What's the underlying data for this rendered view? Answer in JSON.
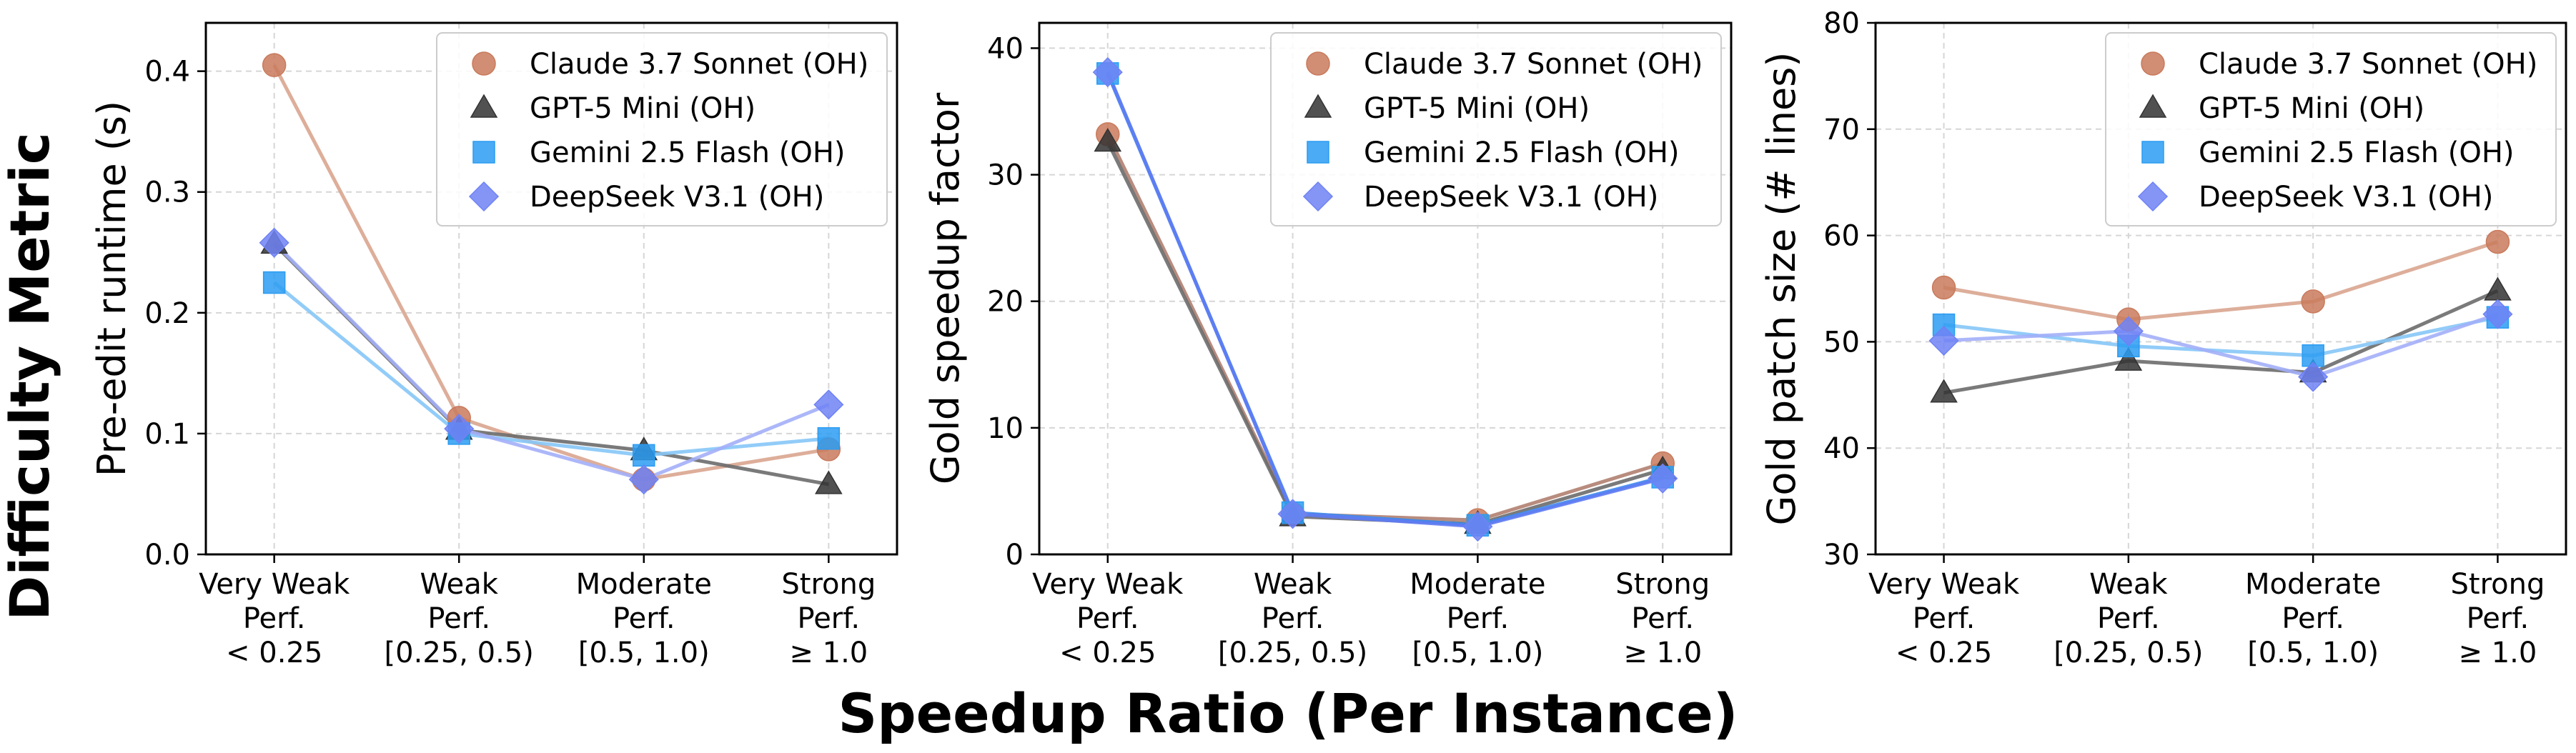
{
  "figure": {
    "supxlabel": "Speedup Ratio (Per Instance)",
    "supylabel": "Difficulty Metric"
  },
  "colors": {
    "claude": "#C97A5C",
    "gpt": "#333333",
    "gemini": "#2B9CF2",
    "deepseek": "#6F82F5"
  },
  "chart_data": [
    {
      "type": "line",
      "xlabel": "",
      "ylabel": "Pre-edit runtime (s)",
      "categories": [
        [
          "Very Weak",
          "Perf.",
          "< 0.25"
        ],
        [
          "Weak",
          "Perf.",
          "[0.25, 0.5)"
        ],
        [
          "Moderate",
          "Perf.",
          "[0.5, 1.0)"
        ],
        [
          "Strong",
          "Perf.",
          "≥ 1.0"
        ]
      ],
      "ylim": [
        0,
        0.44
      ],
      "yticks": [
        "0.0",
        "0.1",
        "0.2",
        "0.3",
        "0.4"
      ],
      "ytick_values": [
        0,
        0.1,
        0.2,
        0.3,
        0.4
      ],
      "grid": true,
      "legend_position": "top-right",
      "series": [
        {
          "name": "Claude 3.7 Sonnet (OH)",
          "marker": "circle",
          "color": "#C97A5C",
          "line_color": "#D9A58F",
          "values": [
            0.405,
            0.113,
            0.062,
            0.087
          ]
        },
        {
          "name": "GPT-5 Mini (OH)",
          "marker": "triangle",
          "color": "#333333",
          "line_color": "#6B6B6B",
          "values": [
            0.257,
            0.103,
            0.086,
            0.058
          ]
        },
        {
          "name": "Gemini 2.5 Flash (OH)",
          "marker": "square",
          "color": "#2B9CF2",
          "line_color": "#86C6F7",
          "values": [
            0.225,
            0.1,
            0.082,
            0.096
          ]
        },
        {
          "name": "DeepSeek V3.1 (OH)",
          "marker": "diamond",
          "color": "#6F82F5",
          "line_color": "#A3AFF8",
          "values": [
            0.258,
            0.104,
            0.062,
            0.124
          ]
        }
      ]
    },
    {
      "type": "line",
      "xlabel": "",
      "ylabel": "Gold speedup factor",
      "categories": [
        [
          "Very Weak",
          "Perf.",
          "< 0.25"
        ],
        [
          "Weak",
          "Perf.",
          "[0.25, 0.5)"
        ],
        [
          "Moderate",
          "Perf.",
          "[0.5, 1.0)"
        ],
        [
          "Strong",
          "Perf.",
          "≥ 1.0"
        ]
      ],
      "ylim": [
        0,
        42
      ],
      "yticks": [
        "0",
        "10",
        "20",
        "30",
        "40"
      ],
      "ytick_values": [
        0,
        10,
        20,
        30,
        40
      ],
      "grid": true,
      "legend_position": "top-right",
      "series": [
        {
          "name": "Claude 3.7 Sonnet (OH)",
          "marker": "circle",
          "color": "#C97A5C",
          "line_color": "#B08070",
          "values": [
            33.2,
            3.2,
            2.7,
            7.2
          ]
        },
        {
          "name": "GPT-5 Mini (OH)",
          "marker": "triangle",
          "color": "#333333",
          "line_color": "#6B6B6B",
          "values": [
            32.6,
            3.0,
            2.4,
            6.7
          ]
        },
        {
          "name": "Gemini 2.5 Flash (OH)",
          "marker": "square",
          "color": "#2B9CF2",
          "line_color": "#3B8BF0",
          "values": [
            38.0,
            3.3,
            2.3,
            6.1
          ]
        },
        {
          "name": "DeepSeek V3.1 (OH)",
          "marker": "diamond",
          "color": "#6F82F5",
          "line_color": "#5F7BF2",
          "values": [
            38.1,
            3.2,
            2.2,
            6.0
          ]
        }
      ]
    },
    {
      "type": "line",
      "xlabel": "",
      "ylabel": "Gold patch size (# lines)",
      "categories": [
        [
          "Very Weak",
          "Perf.",
          "< 0.25"
        ],
        [
          "Weak",
          "Perf.",
          "[0.25, 0.5)"
        ],
        [
          "Moderate",
          "Perf.",
          "[0.5, 1.0)"
        ],
        [
          "Strong",
          "Perf.",
          "≥ 1.0"
        ]
      ],
      "ylim": [
        30,
        80
      ],
      "yticks": [
        "30",
        "40",
        "50",
        "60",
        "70",
        "80"
      ],
      "ytick_values": [
        30,
        40,
        50,
        60,
        70,
        80
      ],
      "grid": true,
      "legend_position": "top-right",
      "series": [
        {
          "name": "Claude 3.7 Sonnet (OH)",
          "marker": "circle",
          "color": "#C97A5C",
          "line_color": "#D9A58F",
          "values": [
            55.1,
            52.1,
            53.8,
            59.4
          ]
        },
        {
          "name": "GPT-5 Mini (OH)",
          "marker": "triangle",
          "color": "#333333",
          "line_color": "#6B6B6B",
          "values": [
            45.2,
            48.2,
            47.1,
            54.8
          ]
        },
        {
          "name": "Gemini 2.5 Flash (OH)",
          "marker": "square",
          "color": "#2B9CF2",
          "line_color": "#86C6F7",
          "values": [
            51.6,
            49.6,
            48.7,
            52.3
          ]
        },
        {
          "name": "DeepSeek V3.1 (OH)",
          "marker": "diamond",
          "color": "#6F82F5",
          "line_color": "#A3AFF8",
          "values": [
            50.1,
            51.0,
            46.7,
            52.6
          ]
        }
      ]
    }
  ]
}
